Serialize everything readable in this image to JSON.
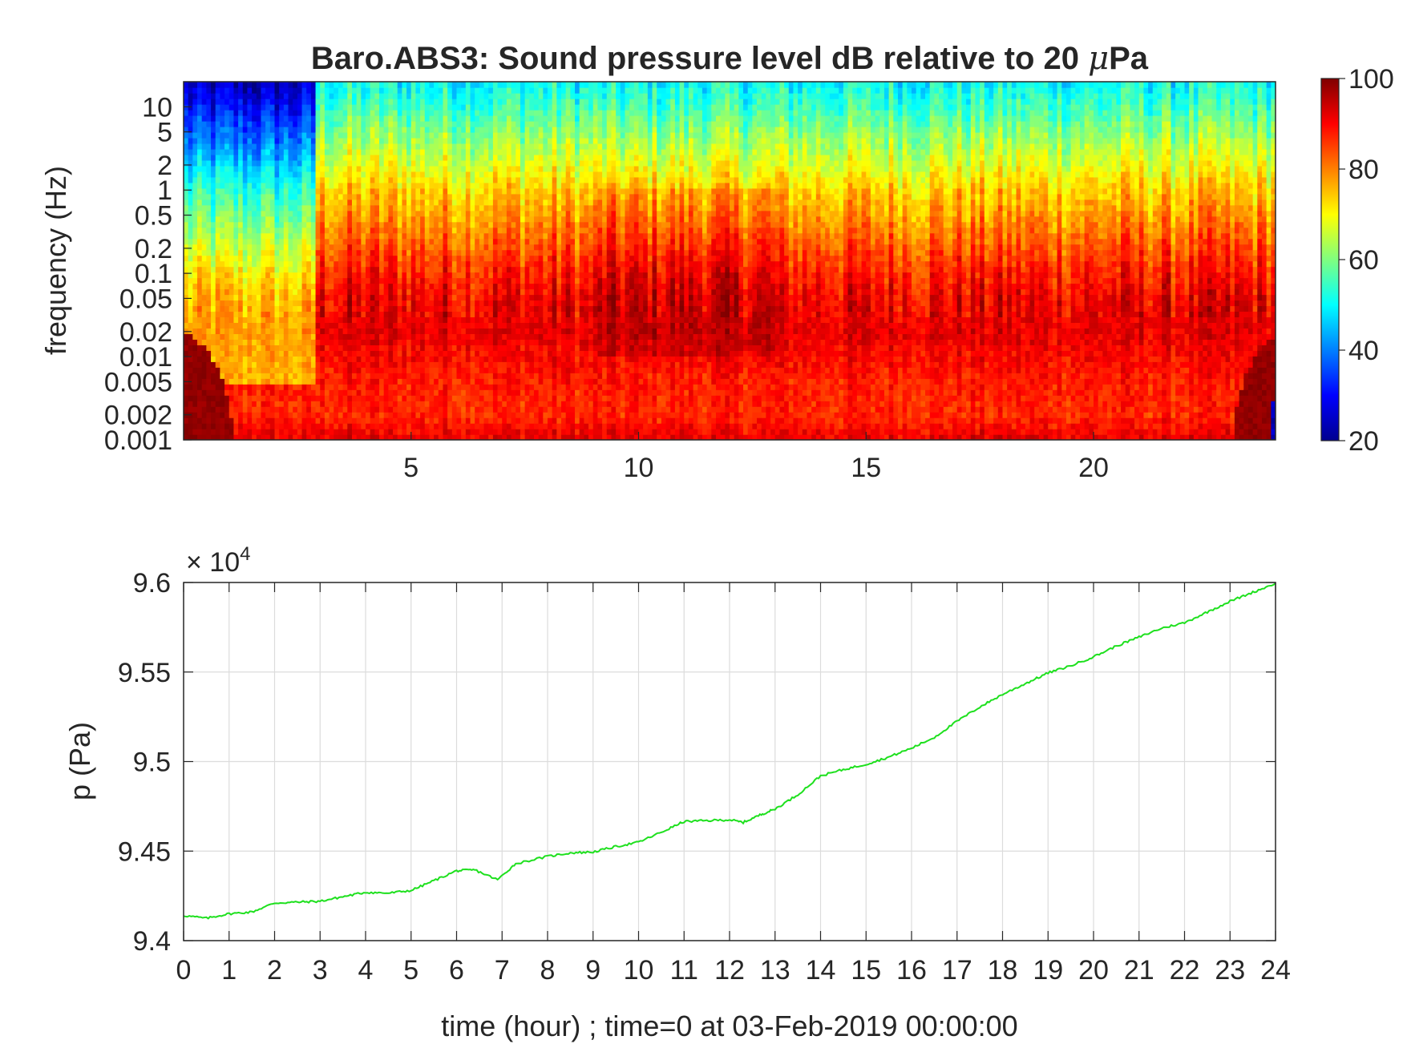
{
  "chart_data": [
    {
      "type": "heatmap",
      "title_prefix": "Baro.ABS3: Sound pressure level dB relative to 20 ",
      "title_mu": "μ",
      "title_suffix": "Pa",
      "xlabel": "",
      "ylabel": "frequency (Hz)",
      "xlim": [
        0,
        24
      ],
      "x_ticks": [
        5,
        10,
        15,
        20
      ],
      "y_scale": "log",
      "ylim": [
        0.001,
        20
      ],
      "y_ticks": [
        0.001,
        0.002,
        0.005,
        0.01,
        0.02,
        0.05,
        0.1,
        0.2,
        0.5,
        1,
        2,
        5,
        10
      ],
      "y_tick_labels": [
        "0.001",
        "0.002",
        "0.005",
        "0.01",
        "0.02",
        "0.05",
        "0.1",
        "0.2",
        "0.5",
        "1",
        "2",
        "5",
        "10"
      ],
      "colormap": "jet",
      "clim": [
        20,
        100
      ],
      "colorbar_ticks": [
        20,
        40,
        60,
        80,
        100
      ],
      "colorbar_location": "right",
      "level_profile_db": [
        {
          "f": 0.001,
          "db": 92
        },
        {
          "f": 0.002,
          "db": 87
        },
        {
          "f": 0.005,
          "db": 88
        },
        {
          "f": 0.01,
          "db": 90
        },
        {
          "f": 0.02,
          "db": 92
        },
        {
          "f": 0.05,
          "db": 91
        },
        {
          "f": 0.1,
          "db": 88
        },
        {
          "f": 0.2,
          "db": 84
        },
        {
          "f": 0.5,
          "db": 78
        },
        {
          "f": 1,
          "db": 74
        },
        {
          "f": 2,
          "db": 68
        },
        {
          "f": 5,
          "db": 61
        },
        {
          "f": 10,
          "db": 55
        },
        {
          "f": 20,
          "db": 50
        }
      ]
    },
    {
      "type": "line",
      "xlabel": "time (hour) ; time=0 at 03-Feb-2019 00:00:00",
      "ylabel": "p (Pa)",
      "y_exponent_label": "× 10",
      "y_exponent": "4",
      "xlim": [
        0,
        24
      ],
      "ylim": [
        9.4,
        9.6
      ],
      "x_ticks": [
        0,
        1,
        2,
        3,
        4,
        5,
        6,
        7,
        8,
        9,
        10,
        11,
        12,
        13,
        14,
        15,
        16,
        17,
        18,
        19,
        20,
        21,
        22,
        23,
        24
      ],
      "y_ticks": [
        9.4,
        9.45,
        9.5,
        9.55,
        9.6
      ],
      "y_tick_labels": [
        "9.4",
        "9.45",
        "9.5",
        "9.55",
        "9.6"
      ],
      "grid": true,
      "series_color": "#1ee01e",
      "x": [
        0,
        0.5,
        1,
        1.5,
        2,
        2.5,
        3,
        3.5,
        4,
        4.5,
        5,
        5.5,
        6,
        6.4,
        6.9,
        7.3,
        8,
        8.5,
        9,
        9.5,
        10,
        10.5,
        11,
        11.5,
        12,
        12.3,
        12.7,
        13,
        13.5,
        14,
        14.5,
        15,
        15.5,
        16,
        16.5,
        17,
        17.5,
        18,
        18.5,
        19,
        19.5,
        20,
        20.5,
        21,
        21.5,
        22,
        22.5,
        23,
        23.5,
        24
      ],
      "y": [
        9.414,
        9.4125,
        9.415,
        9.416,
        9.421,
        9.4215,
        9.422,
        9.4245,
        9.427,
        9.4265,
        9.428,
        9.4335,
        9.439,
        9.4395,
        9.434,
        9.443,
        9.447,
        9.449,
        9.4495,
        9.4525,
        9.455,
        9.4605,
        9.4665,
        9.467,
        9.4675,
        9.466,
        9.4705,
        9.4735,
        9.4815,
        9.492,
        9.4955,
        9.4985,
        9.5025,
        9.5075,
        9.5135,
        9.5225,
        9.5305,
        9.5375,
        9.5435,
        9.5495,
        9.5535,
        9.5585,
        9.5645,
        9.5695,
        9.5745,
        9.5775,
        9.5835,
        9.5895,
        9.5945,
        9.5995
      ]
    }
  ]
}
